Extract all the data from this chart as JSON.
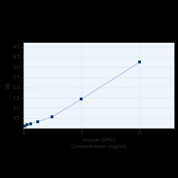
{
  "title": "",
  "xlabel_line1": "Human DPH2",
  "xlabel_line2": "Concentration (ng/ml)",
  "ylabel": "OD",
  "x_data": [
    0.156,
    0.313,
    0.625,
    1.25,
    2.5,
    5,
    10
  ],
  "y_data": [
    0.112,
    0.158,
    0.208,
    0.32,
    0.56,
    1.42,
    3.24
  ],
  "xlim": [
    0,
    13
  ],
  "ylim": [
    0,
    4.2
  ],
  "yticks": [
    0.5,
    1.0,
    1.5,
    2.0,
    2.5,
    3.0,
    3.5,
    4.0
  ],
  "xticks": [
    0,
    5,
    10
  ],
  "line_color": "#a8c8e8",
  "marker_color": "#1a3a6b",
  "marker_size": 3,
  "grid_color": "#c8dded",
  "bg_color": "#eef4fa",
  "fig_bg": "#000000",
  "plot_bg": "#eef4fa",
  "ylabel_fontsize": 5,
  "xlabel_fontsize": 5,
  "tick_fontsize": 5,
  "linewidth": 0.8,
  "spine_color": "#aaaaaa"
}
